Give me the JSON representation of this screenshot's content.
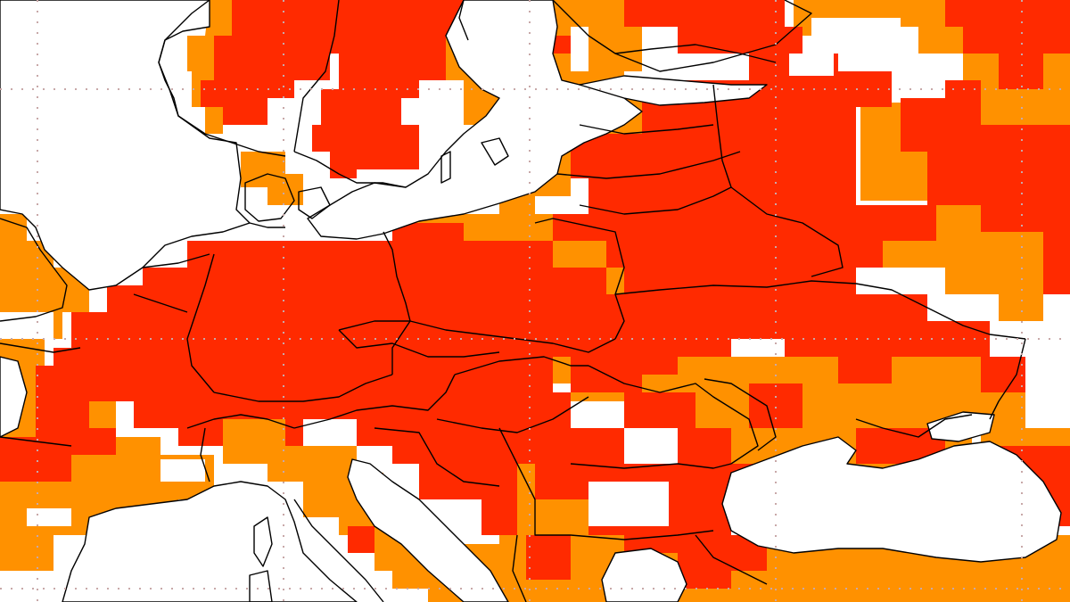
{
  "map": {
    "colors": {
      "background": "#ffffff",
      "class_high": "#ff2a00",
      "class_medium": "#ff9100",
      "borders": "#000000",
      "graticule": "#c8a8a8"
    },
    "legend": []
  }
}
